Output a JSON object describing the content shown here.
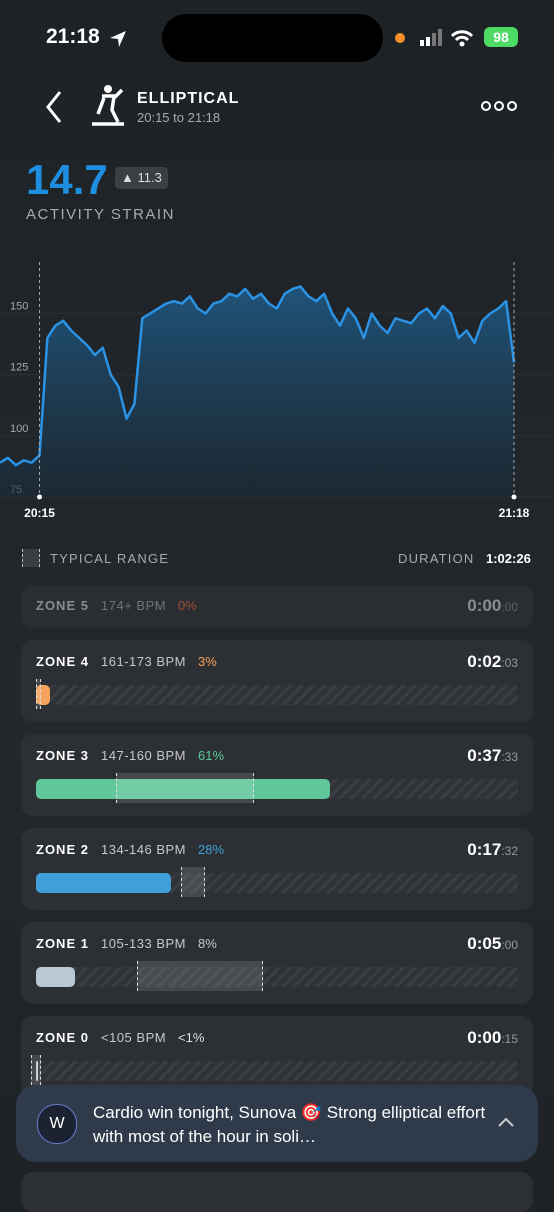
{
  "status_bar": {
    "time": "21:18",
    "battery": "98"
  },
  "header": {
    "title": "ELLIPTICAL",
    "subtitle": "20:15 to 21:18"
  },
  "strain": {
    "value": "14.7",
    "change": "11.3",
    "label": "ACTIVITY STRAIN"
  },
  "chart": {
    "type": "line",
    "color": "#2b93e6",
    "values": [
      89,
      91,
      88,
      90,
      89,
      92,
      140,
      145,
      147,
      143,
      140,
      137,
      133,
      136,
      125,
      120,
      107,
      113,
      148,
      150,
      152,
      154,
      155,
      154,
      157,
      152,
      150,
      154,
      155,
      158,
      157,
      160,
      156,
      158,
      154,
      152,
      158,
      160,
      161,
      157,
      155,
      158,
      150,
      145,
      152,
      148,
      140,
      150,
      145,
      142,
      148,
      147,
      146,
      150,
      152,
      148,
      153,
      150,
      140,
      143,
      138,
      147,
      150,
      152,
      155,
      130
    ],
    "xlim": [
      0,
      65
    ],
    "xticks": [
      {
        "value": 5,
        "label": "20:15"
      },
      {
        "value": 65,
        "label": "21:18"
      }
    ],
    "ylim": [
      75,
      171
    ],
    "yticks": [
      75,
      100,
      125,
      150
    ]
  },
  "legend": {
    "typical_range": "TYPICAL RANGE",
    "duration_label": "DURATION",
    "duration": "1:02:26"
  },
  "zones": [
    {
      "name": "ZONE 5",
      "bpm": "174+ BPM",
      "percent": 0,
      "percent_label": "0%",
      "duration": "0:00",
      "duration_sec": ":00",
      "color": "#f08a4b",
      "label_color": "#d9583b"
    },
    {
      "name": "ZONE 4",
      "bpm": "161-173 BPM",
      "percent": 3,
      "percent_label": "3%",
      "duration": "0:02",
      "duration_sec": ":03",
      "color": "#f5a35c",
      "label_color": "#f5a35c",
      "typical_range": [
        0,
        1
      ]
    },
    {
      "name": "ZONE 3",
      "bpm": "147-160 BPM",
      "percent": 61,
      "percent_label": "61%",
      "duration": "0:37",
      "duration_sec": ":33",
      "color": "#5fc79a",
      "label_color": "#5fc79a",
      "typical_range": [
        16.6,
        45.2
      ]
    },
    {
      "name": "ZONE 2",
      "bpm": "134-146 BPM",
      "percent": 28,
      "percent_label": "28%",
      "duration": "0:17",
      "duration_sec": ":32",
      "color": "#3f9fd8",
      "label_color": "#3f9fd8",
      "typical_range": [
        30,
        35
      ]
    },
    {
      "name": "ZONE 1",
      "bpm": "105-133 BPM",
      "percent": 8,
      "percent_label": "8%",
      "duration": "0:05",
      "duration_sec": ":00",
      "color": "#b8c8d4",
      "label_color": "#c8c8c8",
      "typical_range": [
        21,
        47
      ]
    },
    {
      "name": "ZONE 0",
      "bpm": "<105 BPM",
      "percent": 0.5,
      "percent_label": "<1%",
      "duration": "0:00",
      "duration_sec": ":15",
      "color": "#c8c8c8",
      "label_color": "#dddddd",
      "typical_range": [
        -1,
        1
      ]
    }
  ],
  "notification": {
    "text": "Cardio win tonight, Sunova 🎯 Strong elliptical effort with most of the hour in soli…"
  }
}
